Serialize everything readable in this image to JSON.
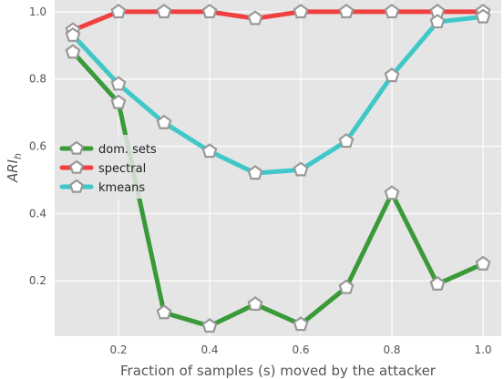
{
  "chart_data": {
    "type": "line",
    "xlabel": "Fraction of samples (s) moved by the attacker",
    "ylabel": "ARI",
    "ylabel_sub": "h",
    "xlim": [
      0.06,
      1.04
    ],
    "ylim": [
      0.035,
      1.035
    ],
    "xticks": [
      0.2,
      0.4,
      0.6,
      0.8,
      1.0
    ],
    "xtick_labels": [
      "0.2",
      "0.4",
      "0.6",
      "0.8",
      "1.0"
    ],
    "yticks": [
      0.2,
      0.4,
      0.6,
      0.8,
      1.0
    ],
    "ytick_labels": [
      "0.2",
      "0.4",
      "0.6",
      "0.8",
      "1.0"
    ],
    "grid": true,
    "legend_position": "center-left",
    "x": [
      0.1,
      0.2,
      0.3,
      0.4,
      0.5,
      0.6,
      0.7,
      0.8,
      0.9,
      1.0
    ],
    "series": [
      {
        "name": "dom. sets",
        "color": "#3a9a3a",
        "values": [
          0.88,
          0.73,
          0.105,
          0.065,
          0.13,
          0.07,
          0.18,
          0.46,
          0.19,
          0.25
        ]
      },
      {
        "name": "spectral",
        "color": "#f04040",
        "values": [
          0.945,
          1.0,
          1.0,
          1.0,
          0.98,
          1.0,
          1.0,
          1.0,
          1.0,
          1.0
        ]
      },
      {
        "name": "kmeans",
        "color": "#40c8c8",
        "values": [
          0.93,
          0.785,
          0.67,
          0.585,
          0.52,
          0.53,
          0.615,
          0.81,
          0.97,
          0.985
        ]
      }
    ],
    "marker_edge_color": "#999999",
    "marker_fill_color": "#ffffff",
    "plot_background": "#e5e5e5"
  }
}
